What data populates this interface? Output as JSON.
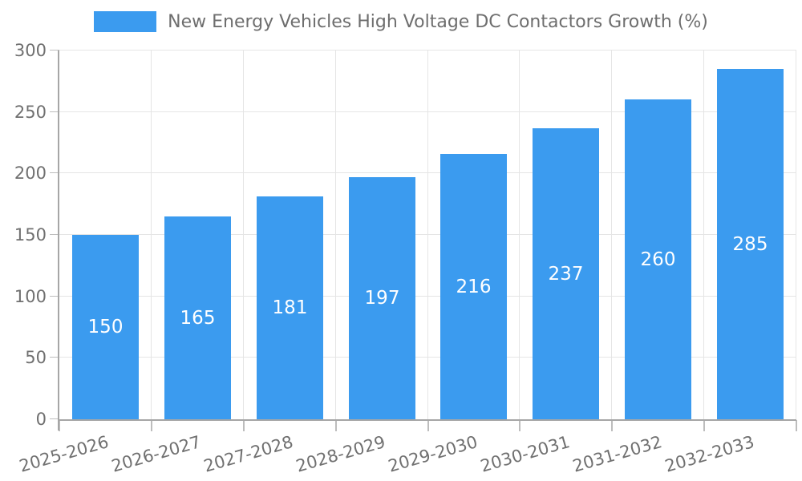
{
  "chart_data": {
    "type": "bar",
    "title": "New Energy Vehicles High Voltage DC Contactors Growth (%)",
    "series_name": "New Energy Vehicles High Voltage DC Contactors Growth (%)",
    "categories": [
      "2025-2026",
      "2026-2027",
      "2027-2028",
      "2028-2029",
      "2029-2030",
      "2030-2031",
      "2031-2032",
      "2032-2033"
    ],
    "values": [
      150,
      165,
      181,
      197,
      216,
      237,
      260,
      285
    ],
    "xlabel": "",
    "ylabel": "",
    "ylim": [
      0,
      300
    ],
    "yticks": [
      0,
      50,
      100,
      150,
      200,
      250,
      300
    ],
    "grid": true,
    "legend_position": "top-center",
    "value_labels_position": "inside-center"
  },
  "colors": {
    "bar": "#3B9BEF",
    "grid_line": "#e5e5e5",
    "axis_line": "#a6a6a6",
    "tick_mark": "#bdbdbd",
    "tick_label": "#707070",
    "value_label": "#ffffff",
    "legend_text": "#6e6e6e",
    "background": "#ffffff"
  }
}
